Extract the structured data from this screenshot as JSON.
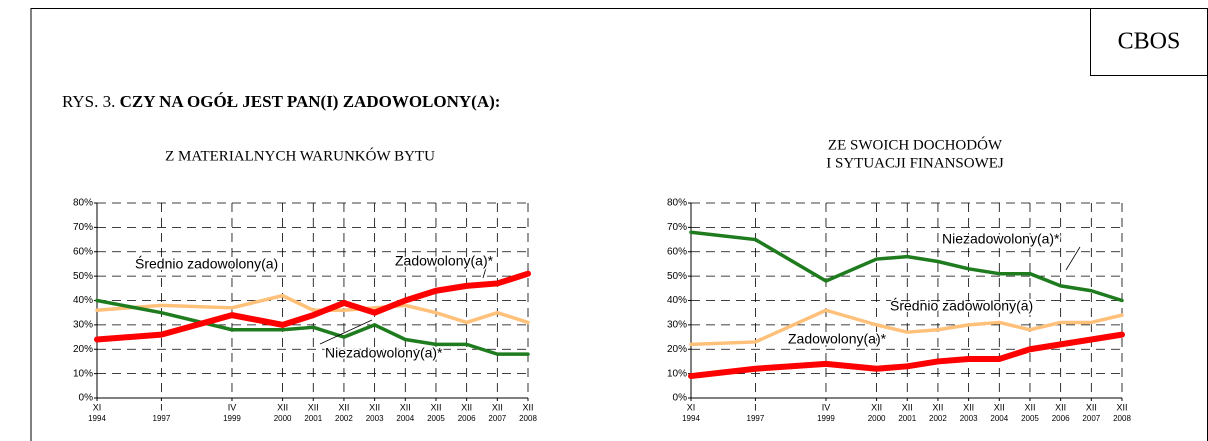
{
  "header": {
    "brand": "CBOS",
    "prefix": "RYS. 3.",
    "title": "CZY NA OGÓŁ JEST PAN(I) ZADOWOLONY(A):"
  },
  "chart_data": [
    {
      "type": "line",
      "title_lines": [
        "Z MATERIALNYCH WARUNKÓW BYTU"
      ],
      "x": [
        1994.9,
        1997.0,
        1999.3,
        2000.95,
        2001.95,
        2002.95,
        2003.95,
        2004.95,
        2005.95,
        2006.95,
        2007.95,
        2008.95
      ],
      "xlim": [
        1994.9,
        2008.95
      ],
      "xticks": [
        {
          "value": 1994.9,
          "label": "XI",
          "sublabel": "1994"
        },
        {
          "value": 1997.0,
          "label": "I",
          "sublabel": "1997"
        },
        {
          "value": 1999.3,
          "label": "IV",
          "sublabel": "1999"
        },
        {
          "value": 2000.95,
          "label": "XII",
          "sublabel": "2000"
        },
        {
          "value": 2001.95,
          "label": "XII",
          "sublabel": "2001"
        },
        {
          "value": 2002.95,
          "label": "XII",
          "sublabel": "2002"
        },
        {
          "value": 2003.95,
          "label": "XII",
          "sublabel": "2003"
        },
        {
          "value": 2004.95,
          "label": "XII",
          "sublabel": "2004"
        },
        {
          "value": 2005.95,
          "label": "XII",
          "sublabel": "2005"
        },
        {
          "value": 2006.95,
          "label": "XII",
          "sublabel": "2006"
        },
        {
          "value": 2007.95,
          "label": "XII",
          "sublabel": "2007"
        },
        {
          "value": 2008.95,
          "label": "XII",
          "sublabel": "2008"
        }
      ],
      "ylim": [
        0,
        80
      ],
      "yticks": [
        {
          "value": 0,
          "label": "0%"
        },
        {
          "value": 10,
          "label": "10%"
        },
        {
          "value": 20,
          "label": "20%"
        },
        {
          "value": 30,
          "label": "30%"
        },
        {
          "value": 40,
          "label": "40%"
        },
        {
          "value": 50,
          "label": "50%"
        },
        {
          "value": 60,
          "label": "60%"
        },
        {
          "value": 70,
          "label": "70%"
        },
        {
          "value": 80,
          "label": "80%"
        }
      ],
      "grid": true,
      "series": [
        {
          "name": "Średnio zadowolony(a)",
          "color": "#ffc07a",
          "values": [
            36,
            38,
            37,
            42,
            36,
            36,
            37,
            38,
            35,
            31,
            35,
            31
          ]
        },
        {
          "name": "Zadowolony(a)*",
          "color": "#ff0000",
          "values": [
            24,
            26,
            34,
            30,
            34,
            39,
            35,
            40,
            44,
            46,
            47,
            51
          ]
        },
        {
          "name": "Niezadowolony(a)*",
          "color": "#1e7b1e",
          "values": [
            40,
            35,
            28,
            28,
            29,
            25,
            30,
            24,
            22,
            22,
            18,
            18
          ]
        }
      ]
    },
    {
      "type": "line",
      "title_lines": [
        "ZE SWOICH DOCHODÓW",
        "I SYTUACJI FINANSOWEJ"
      ],
      "x": [
        1994.9,
        1997.0,
        1999.3,
        2000.95,
        2001.95,
        2002.95,
        2003.95,
        2004.95,
        2005.95,
        2006.95,
        2007.95,
        2008.95
      ],
      "xlim": [
        1994.9,
        2008.95
      ],
      "xticks": [
        {
          "value": 1994.9,
          "label": "XI",
          "sublabel": "1994"
        },
        {
          "value": 1997.0,
          "label": "I",
          "sublabel": "1997"
        },
        {
          "value": 1999.3,
          "label": "IV",
          "sublabel": "1999"
        },
        {
          "value": 2000.95,
          "label": "XII",
          "sublabel": "2000"
        },
        {
          "value": 2001.95,
          "label": "XII",
          "sublabel": "2001"
        },
        {
          "value": 2002.95,
          "label": "XII",
          "sublabel": "2002"
        },
        {
          "value": 2003.95,
          "label": "XII",
          "sublabel": "2003"
        },
        {
          "value": 2004.95,
          "label": "XII",
          "sublabel": "2004"
        },
        {
          "value": 2005.95,
          "label": "XII",
          "sublabel": "2005"
        },
        {
          "value": 2006.95,
          "label": "XII",
          "sublabel": "2006"
        },
        {
          "value": 2007.95,
          "label": "XII",
          "sublabel": "2007"
        },
        {
          "value": 2008.95,
          "label": "XII",
          "sublabel": "2008"
        }
      ],
      "ylim": [
        0,
        80
      ],
      "yticks": [
        {
          "value": 0,
          "label": "0%"
        },
        {
          "value": 10,
          "label": "10%"
        },
        {
          "value": 20,
          "label": "20%"
        },
        {
          "value": 30,
          "label": "30%"
        },
        {
          "value": 40,
          "label": "40%"
        },
        {
          "value": 50,
          "label": "50%"
        },
        {
          "value": 60,
          "label": "60%"
        },
        {
          "value": 70,
          "label": "70%"
        },
        {
          "value": 80,
          "label": "80%"
        }
      ],
      "grid": true,
      "series": [
        {
          "name": "Niezadowolony(a)*",
          "color": "#1e7b1e",
          "values": [
            68,
            65,
            48,
            57,
            58,
            56,
            53,
            51,
            51,
            46,
            44,
            40
          ]
        },
        {
          "name": "Średnio zadowolony(a)",
          "color": "#ffc07a",
          "values": [
            22,
            23,
            36,
            30,
            27,
            28,
            30,
            31,
            28,
            31,
            31,
            34
          ]
        },
        {
          "name": "Zadowolony(a)*",
          "color": "#ff0000",
          "values": [
            9,
            12,
            14,
            12,
            13,
            15,
            16,
            16,
            20,
            22,
            24,
            26
          ]
        }
      ]
    }
  ]
}
